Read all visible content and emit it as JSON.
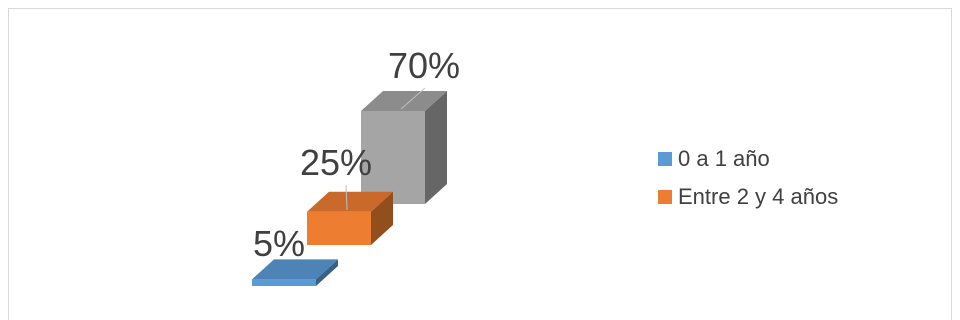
{
  "chart_data": {
    "type": "bar",
    "title": "",
    "categories": [
      "0 a 1 año",
      "Entre 2 y 4 años",
      ""
    ],
    "values": [
      5,
      25,
      70
    ],
    "data_labels": [
      "5%",
      "25%",
      "70%"
    ],
    "colors": [
      "#5B9BD5",
      "#ED7D31",
      "#A5A5A5"
    ],
    "legend": {
      "position": "right",
      "entries": [
        {
          "label": "0 a 1 año",
          "color": "#5B9BD5"
        },
        {
          "label": "Entre 2 y 4 años",
          "color": "#ED7D31"
        }
      ]
    },
    "grid": false,
    "three_d": true
  }
}
